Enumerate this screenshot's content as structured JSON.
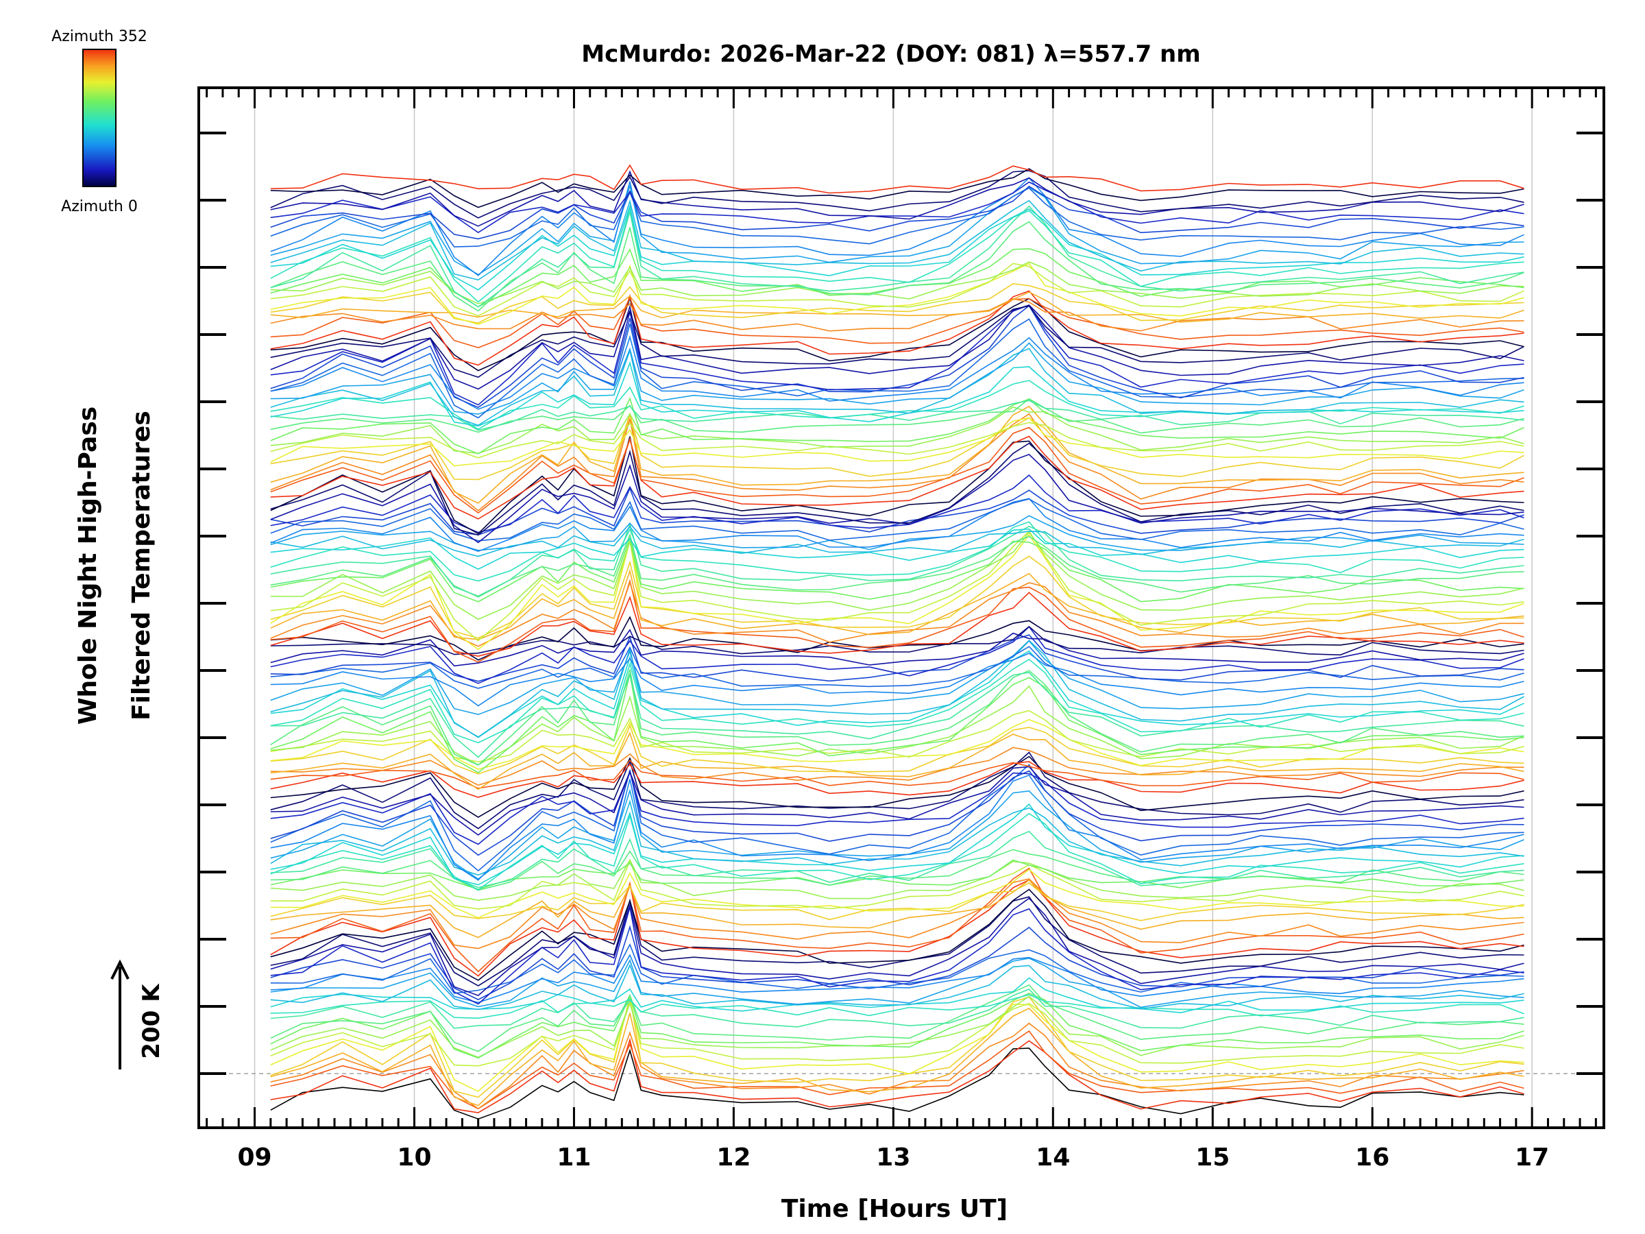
{
  "chart_data": {
    "type": "line",
    "title": "McMurdo: 2026-Mar-22 (DOY: 081) λ=557.7 nm",
    "xlabel": "Time [Hours UT]",
    "ylabel_line1": "Whole Night High-Pass",
    "ylabel_line2": "Filtered Temperatures",
    "xlim": [
      8.65,
      17.45
    ],
    "x_ticks": [
      9,
      10,
      11,
      12,
      13,
      14,
      15,
      16,
      17
    ],
    "x_tick_labels": [
      "09",
      "10",
      "11",
      "12",
      "13",
      "14",
      "15",
      "16",
      "17"
    ],
    "y_major_ticks": 15,
    "scale_bar": {
      "label": "200 K"
    },
    "colorbar": {
      "top_label": "Azimuth 352",
      "bottom_label": "Azimuth 0",
      "colormap": "rainbow"
    },
    "azimuth_min": 0,
    "azimuth_max": 352,
    "num_traces": 134,
    "num_groups": 6,
    "traces_per_group": 22,
    "baseline_trace": 0,
    "time_points": [
      9.1,
      9.3,
      9.55,
      9.8,
      10.1,
      10.25,
      10.4,
      10.6,
      10.8,
      10.9,
      11.0,
      11.1,
      11.25,
      11.35,
      11.42,
      11.55,
      11.75,
      12.05,
      12.4,
      12.6,
      12.85,
      13.1,
      13.35,
      13.6,
      13.75,
      13.85,
      13.95,
      14.1,
      14.3,
      14.55,
      14.8,
      15.1,
      15.3,
      15.6,
      15.8,
      16.0,
      16.3,
      16.55,
      16.8,
      16.95
    ],
    "mean_profile_K": [
      -20,
      -10,
      8,
      -5,
      18,
      -30,
      -45,
      -20,
      10,
      0,
      15,
      0,
      -10,
      50,
      -5,
      -12,
      -15,
      -20,
      -22,
      -25,
      -25,
      -23,
      -10,
      20,
      45,
      55,
      35,
      5,
      -10,
      -28,
      -25,
      -20,
      -18,
      -15,
      -18,
      -12,
      -10,
      -15,
      -12,
      -10
    ],
    "K_per_trace": 10.0
  },
  "colors": {
    "background": "#ffffff",
    "axes": "#000000",
    "gridline": "#c8c8c8",
    "zero_line": "#a0a0a0"
  }
}
